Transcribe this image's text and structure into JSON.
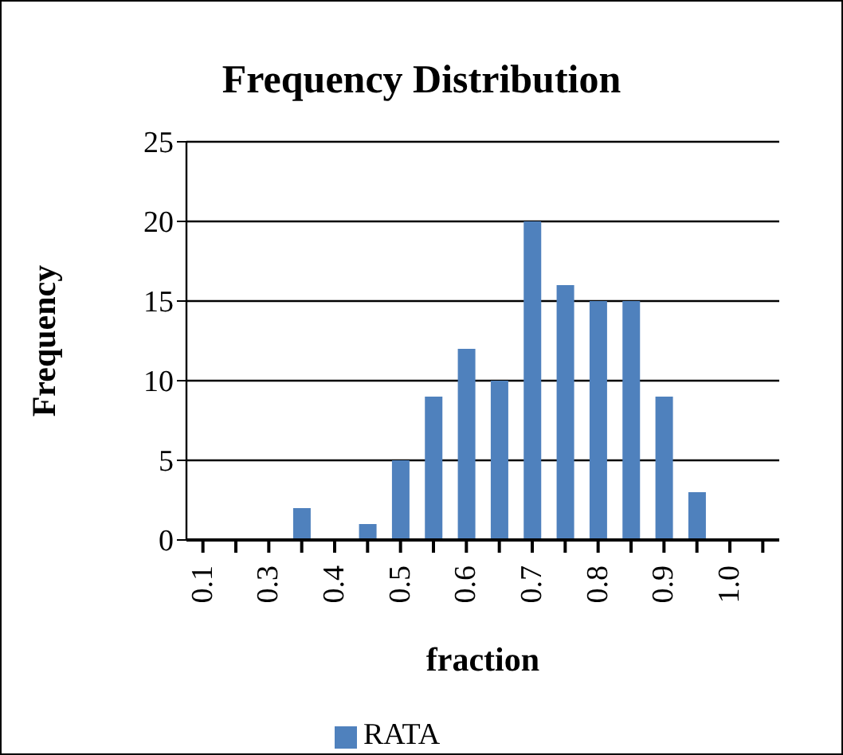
{
  "chart_data": {
    "type": "bar",
    "title": "Frequency Distribution",
    "xlabel": "fraction",
    "ylabel": "Frequency",
    "categories": [
      "0.1",
      null,
      "0.3",
      null,
      "0.4",
      null,
      "0.5",
      null,
      "0.6",
      null,
      "0.7",
      null,
      "0.8",
      null,
      "0.9",
      null,
      "1.0",
      null
    ],
    "series": [
      {
        "name": "RATA",
        "color": "#4f81bd",
        "values": [
          0,
          0,
          0,
          2,
          0,
          1,
          5,
          9,
          12,
          10,
          20,
          16,
          15,
          15,
          9,
          3,
          0,
          0
        ]
      }
    ],
    "ylim": [
      0,
      25
    ],
    "yticks": [
      0,
      5,
      10,
      15,
      20,
      25
    ],
    "grid": "y",
    "legend": "bottom"
  }
}
